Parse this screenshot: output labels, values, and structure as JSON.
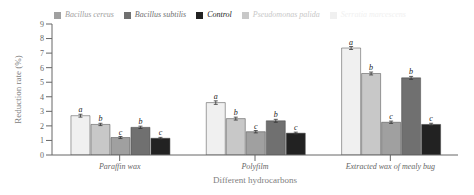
{
  "chart_data": {
    "type": "bar",
    "categories": [
      "Paraffin wax",
      "Polyfilm",
      "Extracted wax of mealy bug"
    ],
    "series": [
      {
        "name": "Serratia marcescens",
        "color": "#f0f0f0",
        "values": [
          2.7,
          3.6,
          7.35
        ],
        "errors": [
          0.1,
          0.12,
          0.1
        ],
        "letters": [
          "a",
          "a",
          "a"
        ]
      },
      {
        "name": "Pseudomonas palida",
        "color": "#c8c8c8",
        "values": [
          2.1,
          2.5,
          5.6
        ],
        "errors": [
          0.08,
          0.1,
          0.1
        ],
        "letters": [
          "b",
          "b",
          "b"
        ]
      },
      {
        "name": "Bacillus cereus",
        "color": "#a0a0a0",
        "values": [
          1.2,
          1.6,
          2.25
        ],
        "errors": [
          0.07,
          0.08,
          0.08
        ],
        "letters": [
          "c",
          "c",
          "c"
        ]
      },
      {
        "name": "Bacillus subtilis",
        "color": "#707070",
        "values": [
          1.9,
          2.35,
          5.3
        ],
        "errors": [
          0.08,
          0.1,
          0.1
        ],
        "letters": [
          "b",
          "b",
          "b"
        ]
      },
      {
        "name": "Control",
        "color": "#222222",
        "values": [
          1.15,
          1.5,
          2.1
        ],
        "errors": [
          0.06,
          0.07,
          0.08
        ],
        "letters": [
          "c",
          "c",
          "c"
        ]
      }
    ],
    "xlabel": "Different hydrocarbons",
    "ylabel": "Reduction rate (%)",
    "ylim": [
      0,
      9
    ],
    "yticks": [
      0,
      1,
      2,
      3,
      4,
      5,
      6,
      7,
      8,
      9
    ],
    "grid": false,
    "legend": "top"
  }
}
